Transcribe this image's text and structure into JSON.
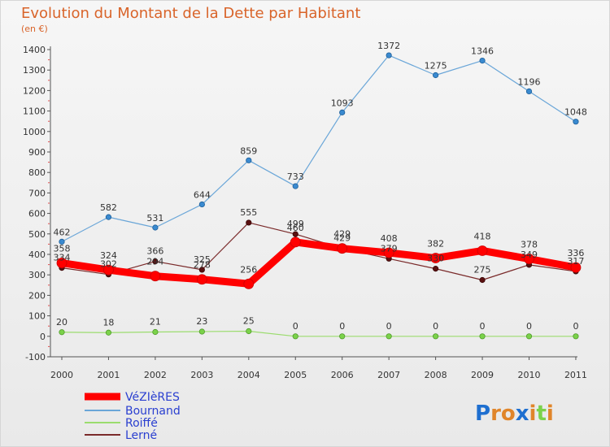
{
  "chart_data": {
    "type": "line",
    "title": "Evolution du Montant de la Dette par Habitant",
    "subtitle": "(en €)",
    "xlabel": "",
    "ylabel": "",
    "categories": [
      "2000",
      "2001",
      "2002",
      "2003",
      "2004",
      "2005",
      "2006",
      "2007",
      "2008",
      "2009",
      "2010",
      "2011"
    ],
    "ylim": [
      -100,
      1400
    ],
    "yticks": [
      -100,
      0,
      100,
      200,
      300,
      400,
      500,
      600,
      700,
      800,
      900,
      1000,
      1100,
      1200,
      1300,
      1400
    ],
    "grid": false,
    "legend_position": "bottom-left",
    "series": [
      {
        "name": "VéZIèRES",
        "color": "#ff0000",
        "values": [
          358,
          324,
          294,
          278,
          256,
          460,
          429,
          408,
          382,
          418,
          378,
          336
        ]
      },
      {
        "name": "Bournand",
        "color": "#6aa6d8",
        "values": [
          462,
          582,
          531,
          644,
          859,
          733,
          1093,
          1372,
          1275,
          1346,
          1196,
          1048
        ]
      },
      {
        "name": "Roiffé",
        "color": "#9bdc6e",
        "values": [
          20,
          18,
          21,
          23,
          25,
          0,
          0,
          0,
          0,
          0,
          0,
          0
        ]
      },
      {
        "name": "Lerné",
        "color": "#7a2a2a",
        "values": [
          334,
          302,
          366,
          325,
          555,
          499,
          429,
          379,
          330,
          275,
          349,
          317
        ]
      }
    ]
  },
  "logo": {
    "text": "Proxiti"
  }
}
